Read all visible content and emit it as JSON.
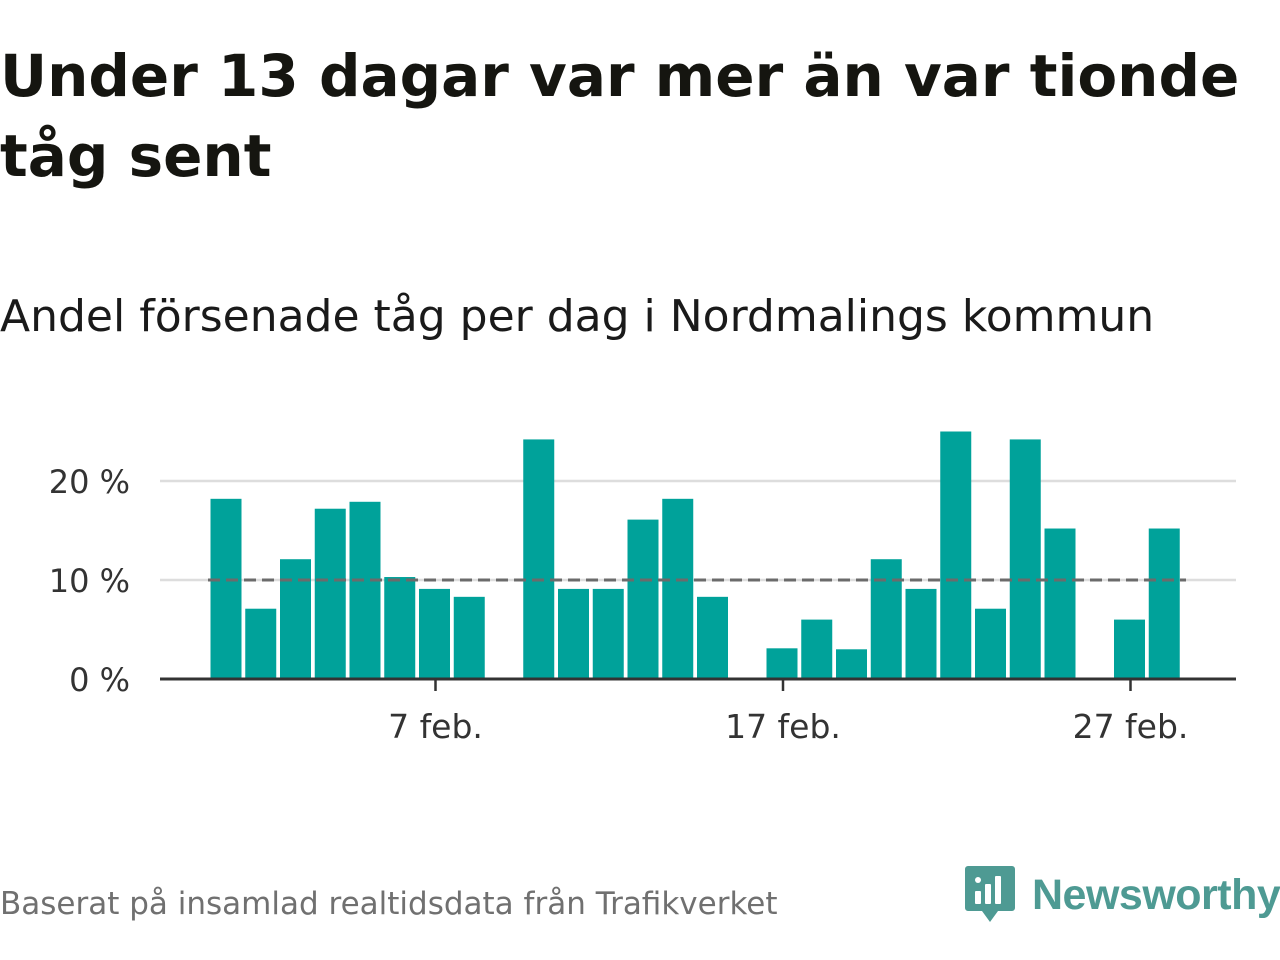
{
  "title": "Under 13 dagar var mer än var tionde tåg sent",
  "subtitle": "Andel försenade tåg per dag i Nordmalings kommun",
  "source": "Baserat på insamlad realtidsdata från Trafikverket",
  "brand": {
    "name": "Newsworthy",
    "logo_icon": "bar-chart-speech-bubble-icon"
  },
  "colors": {
    "bar": "#00a29a",
    "reference_line": "#6b6b6b",
    "grid": "#dddddd",
    "axis": "#333333",
    "brand": "#4e9a93"
  },
  "chart_data": {
    "type": "bar",
    "x": [
      "1 feb.",
      "2 feb.",
      "3 feb.",
      "4 feb.",
      "5 feb.",
      "6 feb.",
      "7 feb.",
      "8 feb.",
      "9 feb.",
      "10 feb.",
      "11 feb.",
      "12 feb.",
      "13 feb.",
      "14 feb.",
      "15 feb.",
      "16 feb.",
      "17 feb.",
      "18 feb.",
      "19 feb.",
      "20 feb.",
      "21 feb.",
      "22 feb.",
      "23 feb.",
      "24 feb.",
      "25 feb.",
      "26 feb.",
      "27 feb.",
      "28 feb."
    ],
    "values": [
      18.2,
      7.1,
      12.1,
      17.2,
      17.9,
      10.3,
      9.1,
      8.3,
      null,
      24.2,
      9.1,
      9.1,
      16.1,
      18.2,
      8.3,
      null,
      3.1,
      6.0,
      3.0,
      12.1,
      9.1,
      25.0,
      7.1,
      24.2,
      15.2,
      null,
      6.0,
      15.2
    ],
    "reference_line": {
      "value": 10,
      "style": "dashed"
    },
    "y_ticks": [
      {
        "value": 0,
        "label": "0 %"
      },
      {
        "value": 10,
        "label": "10 %"
      },
      {
        "value": 20,
        "label": "20 %"
      }
    ],
    "x_ticks": [
      {
        "index": 6,
        "label": "7 feb."
      },
      {
        "index": 16,
        "label": "17 feb."
      },
      {
        "index": 26,
        "label": "27 feb."
      }
    ],
    "ylim": [
      0,
      27
    ],
    "grid": "horizontal",
    "xlabel": "",
    "ylabel": ""
  }
}
